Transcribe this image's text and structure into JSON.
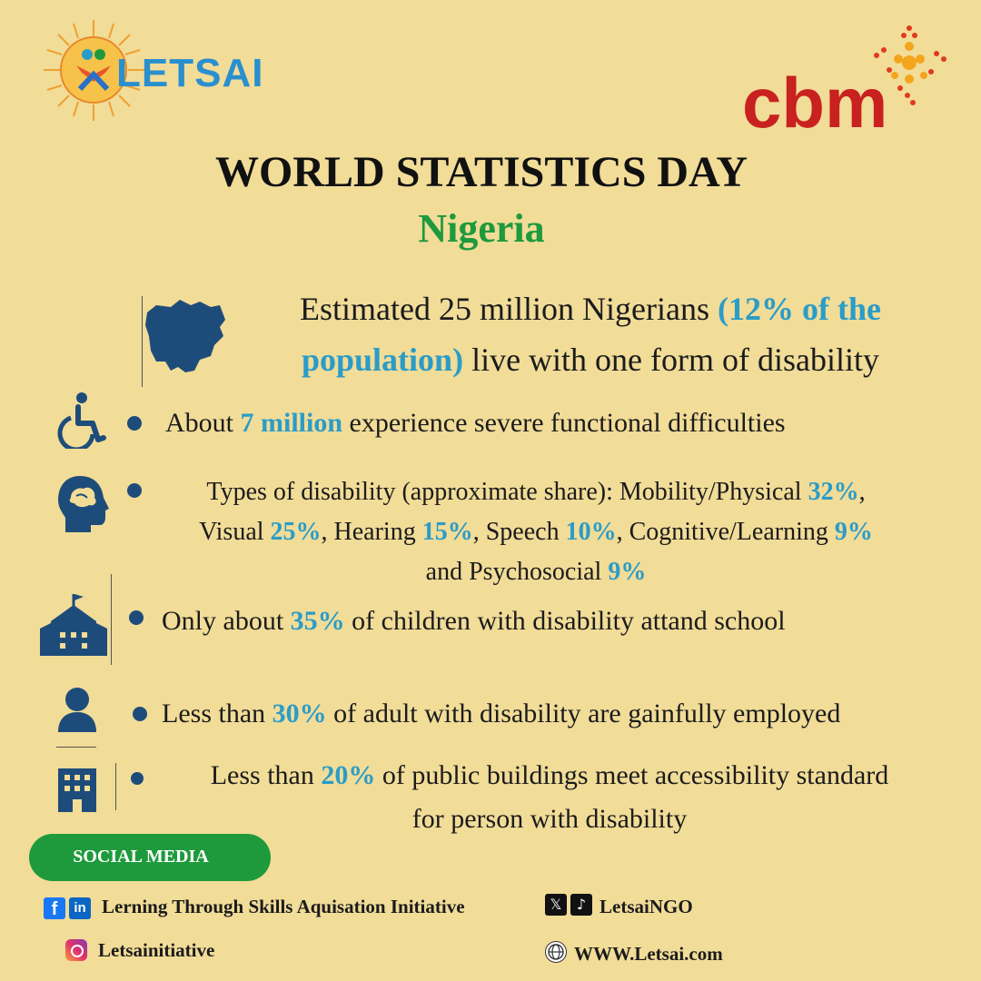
{
  "logos": {
    "letsai": "LETSAI",
    "cbm": "cbm"
  },
  "header": {
    "title": "WORLD STATISTICS DAY",
    "subtitle": "Nigeria"
  },
  "intro": {
    "pre": "Estimated 25 million Nigerians ",
    "highlight": "(12% of the population)",
    "post": " live with one form of disability"
  },
  "stats": {
    "severe": {
      "pre": "About ",
      "highlight": "7 million",
      "post": " experience severe functional difficulties"
    },
    "types": {
      "line1_pre": "Types of disability (approximate share): Mobility/Physical ",
      "mobility": "32%",
      "line1_post": ",",
      "visual_label": "Visual ",
      "visual": "25%",
      "hearing_label": ", Hearing ",
      "hearing": "15%",
      "speech_label": ", Speech ",
      "speech": "10%",
      "cognitive_label": ", Cognitive/Learning ",
      "cognitive": "9%",
      "psychosocial_label": "and Psychosocial ",
      "psychosocial": "9%"
    },
    "school": {
      "pre": "Only about ",
      "highlight": "35%",
      "post": " of children with disability attand school"
    },
    "employment": {
      "pre": "Less than ",
      "highlight": "30%",
      "post": " of adult with disability are gainfully employed"
    },
    "buildings": {
      "pre": "Less than ",
      "highlight": "20%",
      "post": " of public buildings meet accessibility standard",
      "line2": "for person with disability"
    }
  },
  "social": {
    "label": "SOCIAL MEDIA",
    "facebook_linkedin": "Lerning Through Skills Aquisation Initiative",
    "x_tiktok": "LetsaiNGO",
    "instagram": "Letsainitiative",
    "website": "WWW.Letsai.com"
  },
  "colors": {
    "background": "#f1dc98",
    "green": "#1e9a3c",
    "highlight": "#2a9cc8",
    "icon": "#1e4c7a",
    "cbm_red": "#c8211f"
  }
}
